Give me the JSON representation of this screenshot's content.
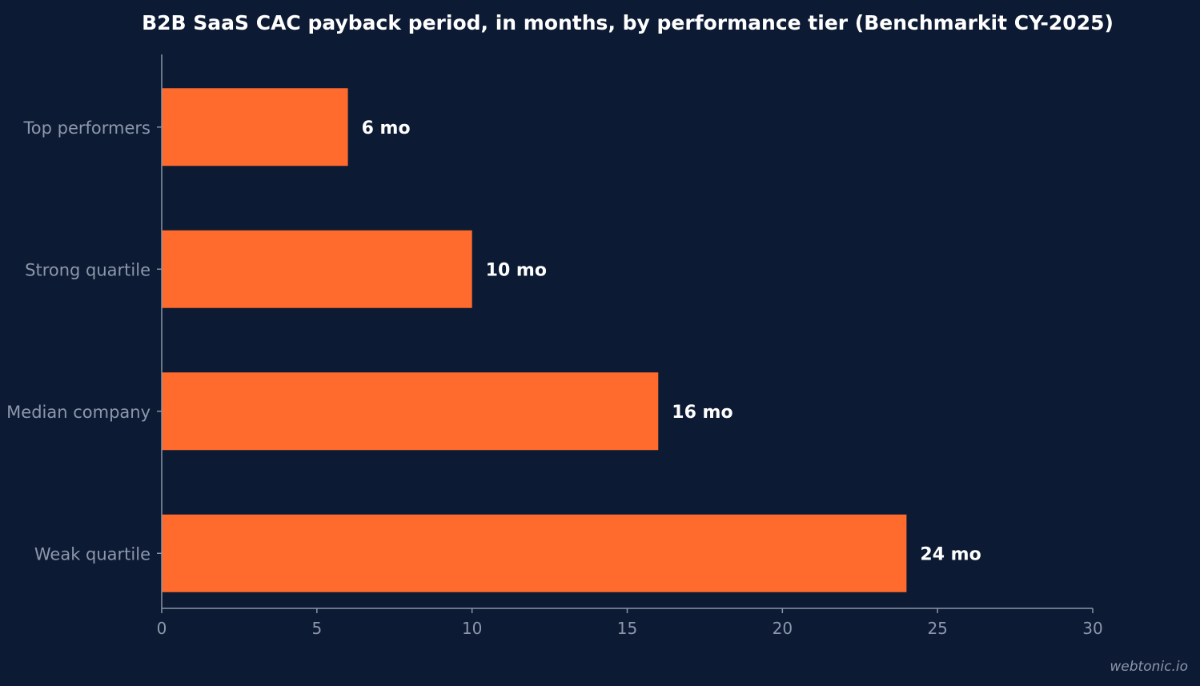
{
  "chart_data": {
    "type": "bar",
    "orientation": "horizontal",
    "title": "B2B SaaS CAC payback period, in months, by performance tier (Benchmarkit CY-2025)",
    "xlabel": "",
    "ylabel": "",
    "categories": [
      "Top performers",
      "Strong quartile",
      "Median company",
      "Weak quartile"
    ],
    "values": [
      6,
      10,
      16,
      24
    ],
    "data_labels": [
      "6 mo",
      "10 mo",
      "16 mo",
      "24 mo"
    ],
    "xlim": [
      0,
      30
    ],
    "x_ticks": [
      0,
      5,
      10,
      15,
      20,
      25,
      30
    ],
    "grid": false,
    "bar_color": "#ff6b2c",
    "background_color": "#0c1a33"
  },
  "watermark": "webtonic.io"
}
